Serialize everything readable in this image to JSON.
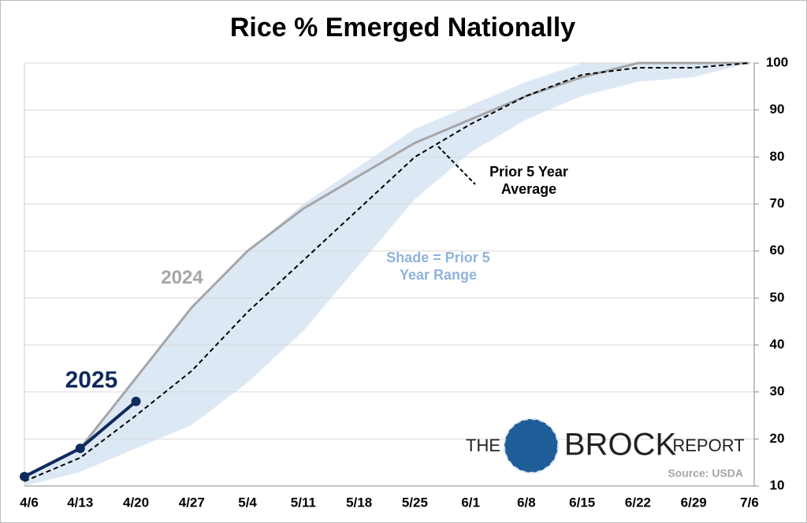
{
  "chart_data": {
    "type": "line",
    "title": "Rice % Emerged Nationally",
    "categories": [
      "4/6",
      "4/13",
      "4/20",
      "4/27",
      "5/4",
      "5/11",
      "5/18",
      "5/25",
      "6/1",
      "6/8",
      "6/15",
      "6/22",
      "6/29",
      "7/6"
    ],
    "series": [
      {
        "name": "2025",
        "color": "#0f2a5c",
        "values": [
          12,
          18,
          28,
          null,
          null,
          null,
          null,
          null,
          null,
          null,
          null,
          null,
          null,
          null
        ]
      },
      {
        "name": "2024",
        "color": "#a6a6a6",
        "values": [
          12,
          18,
          33,
          48,
          60,
          69,
          76,
          83,
          88,
          93,
          97,
          100,
          100,
          100
        ]
      },
      {
        "name": "Prior 5 Year Average",
        "color": "#000000",
        "values": [
          11,
          16,
          25,
          34.5,
          47,
          58,
          69,
          80,
          87,
          93,
          97.5,
          99,
          99,
          100
        ]
      }
    ],
    "range": {
      "label": "Shade = Prior 5 Year Range",
      "color": "#dde8f5",
      "upper": [
        12,
        18,
        33,
        48,
        60,
        70,
        78,
        86,
        91,
        96,
        100,
        100,
        100,
        100
      ],
      "lower": [
        10,
        13,
        18,
        23,
        32,
        43,
        57,
        71,
        81,
        88,
        93,
        96,
        97,
        100
      ]
    },
    "ylim": [
      10,
      100
    ],
    "yticks": [
      10,
      20,
      30,
      40,
      50,
      60,
      70,
      80,
      90,
      100
    ],
    "grid": true,
    "logo": [
      "THE",
      "BROCK",
      "REPORT"
    ],
    "source": "Source: USDA"
  }
}
